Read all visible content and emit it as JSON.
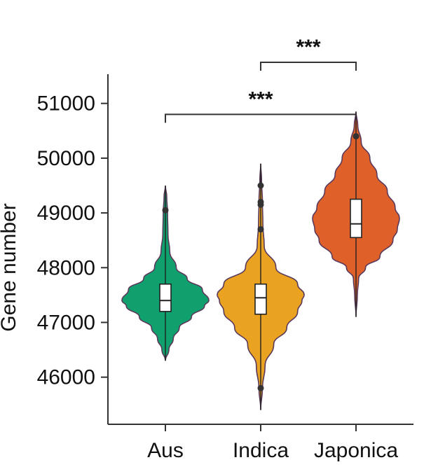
{
  "chart_data": {
    "type": "violin",
    "title": "",
    "xlabel": "",
    "ylabel": "Gene number",
    "ylim": [
      45200,
      51600
    ],
    "yticks": [
      46000,
      47000,
      48000,
      49000,
      50000,
      51000
    ],
    "grid": false,
    "categories": [
      "Aus",
      "Indica",
      "Japonica"
    ],
    "series": [
      {
        "category": "Aus",
        "color": "#10a06e",
        "median": 47400,
        "q1": 47200,
        "q3": 47700,
        "whisker_low": 46800,
        "whisker_high": 49000,
        "range": [
          46300,
          49500
        ],
        "outliers": [
          49050
        ],
        "density": [
          [
            46300,
            0.0
          ],
          [
            46500,
            0.08
          ],
          [
            46700,
            0.18
          ],
          [
            46900,
            0.32
          ],
          [
            47100,
            0.6
          ],
          [
            47300,
            0.9
          ],
          [
            47400,
            1.0
          ],
          [
            47600,
            0.85
          ],
          [
            47800,
            0.5
          ],
          [
            48000,
            0.25
          ],
          [
            48300,
            0.1
          ],
          [
            48600,
            0.06
          ],
          [
            49000,
            0.05
          ],
          [
            49300,
            0.03
          ],
          [
            49500,
            0.0
          ]
        ]
      },
      {
        "category": "Indica",
        "color": "#e9a321",
        "median": 47450,
        "q1": 47150,
        "q3": 47700,
        "whisker_low": 46200,
        "whisker_high": 49300,
        "range": [
          45400,
          49900
        ],
        "outliers": [
          45800,
          48700,
          49150,
          49200,
          49500
        ],
        "density": [
          [
            45400,
            0.0
          ],
          [
            45800,
            0.04
          ],
          [
            46200,
            0.1
          ],
          [
            46600,
            0.3
          ],
          [
            46900,
            0.6
          ],
          [
            47200,
            0.85
          ],
          [
            47400,
            0.95
          ],
          [
            47500,
            1.0
          ],
          [
            47700,
            0.85
          ],
          [
            48000,
            0.35
          ],
          [
            48400,
            0.08
          ],
          [
            48800,
            0.05
          ],
          [
            49200,
            0.04
          ],
          [
            49600,
            0.02
          ],
          [
            49900,
            0.0
          ]
        ]
      },
      {
        "category": "Japonica",
        "color": "#e0602a",
        "median": 48800,
        "q1": 48550,
        "q3": 49250,
        "whisker_low": 47800,
        "whisker_high": 50400,
        "range": [
          47100,
          50850
        ],
        "outliers": [
          50400
        ],
        "density": [
          [
            47100,
            0.0
          ],
          [
            47500,
            0.03
          ],
          [
            47800,
            0.06
          ],
          [
            48000,
            0.22
          ],
          [
            48200,
            0.55
          ],
          [
            48500,
            0.85
          ],
          [
            48700,
            0.95
          ],
          [
            48900,
            1.0
          ],
          [
            49100,
            0.9
          ],
          [
            49400,
            0.72
          ],
          [
            49700,
            0.48
          ],
          [
            50000,
            0.32
          ],
          [
            50300,
            0.12
          ],
          [
            50600,
            0.04
          ],
          [
            50850,
            0.0
          ]
        ]
      }
    ],
    "annotations": [
      {
        "from": "Aus",
        "to": "Japonica",
        "y": 50800,
        "label": "***"
      },
      {
        "from": "Indica",
        "to": "Japonica",
        "y": 51750,
        "label": "***"
      }
    ]
  }
}
